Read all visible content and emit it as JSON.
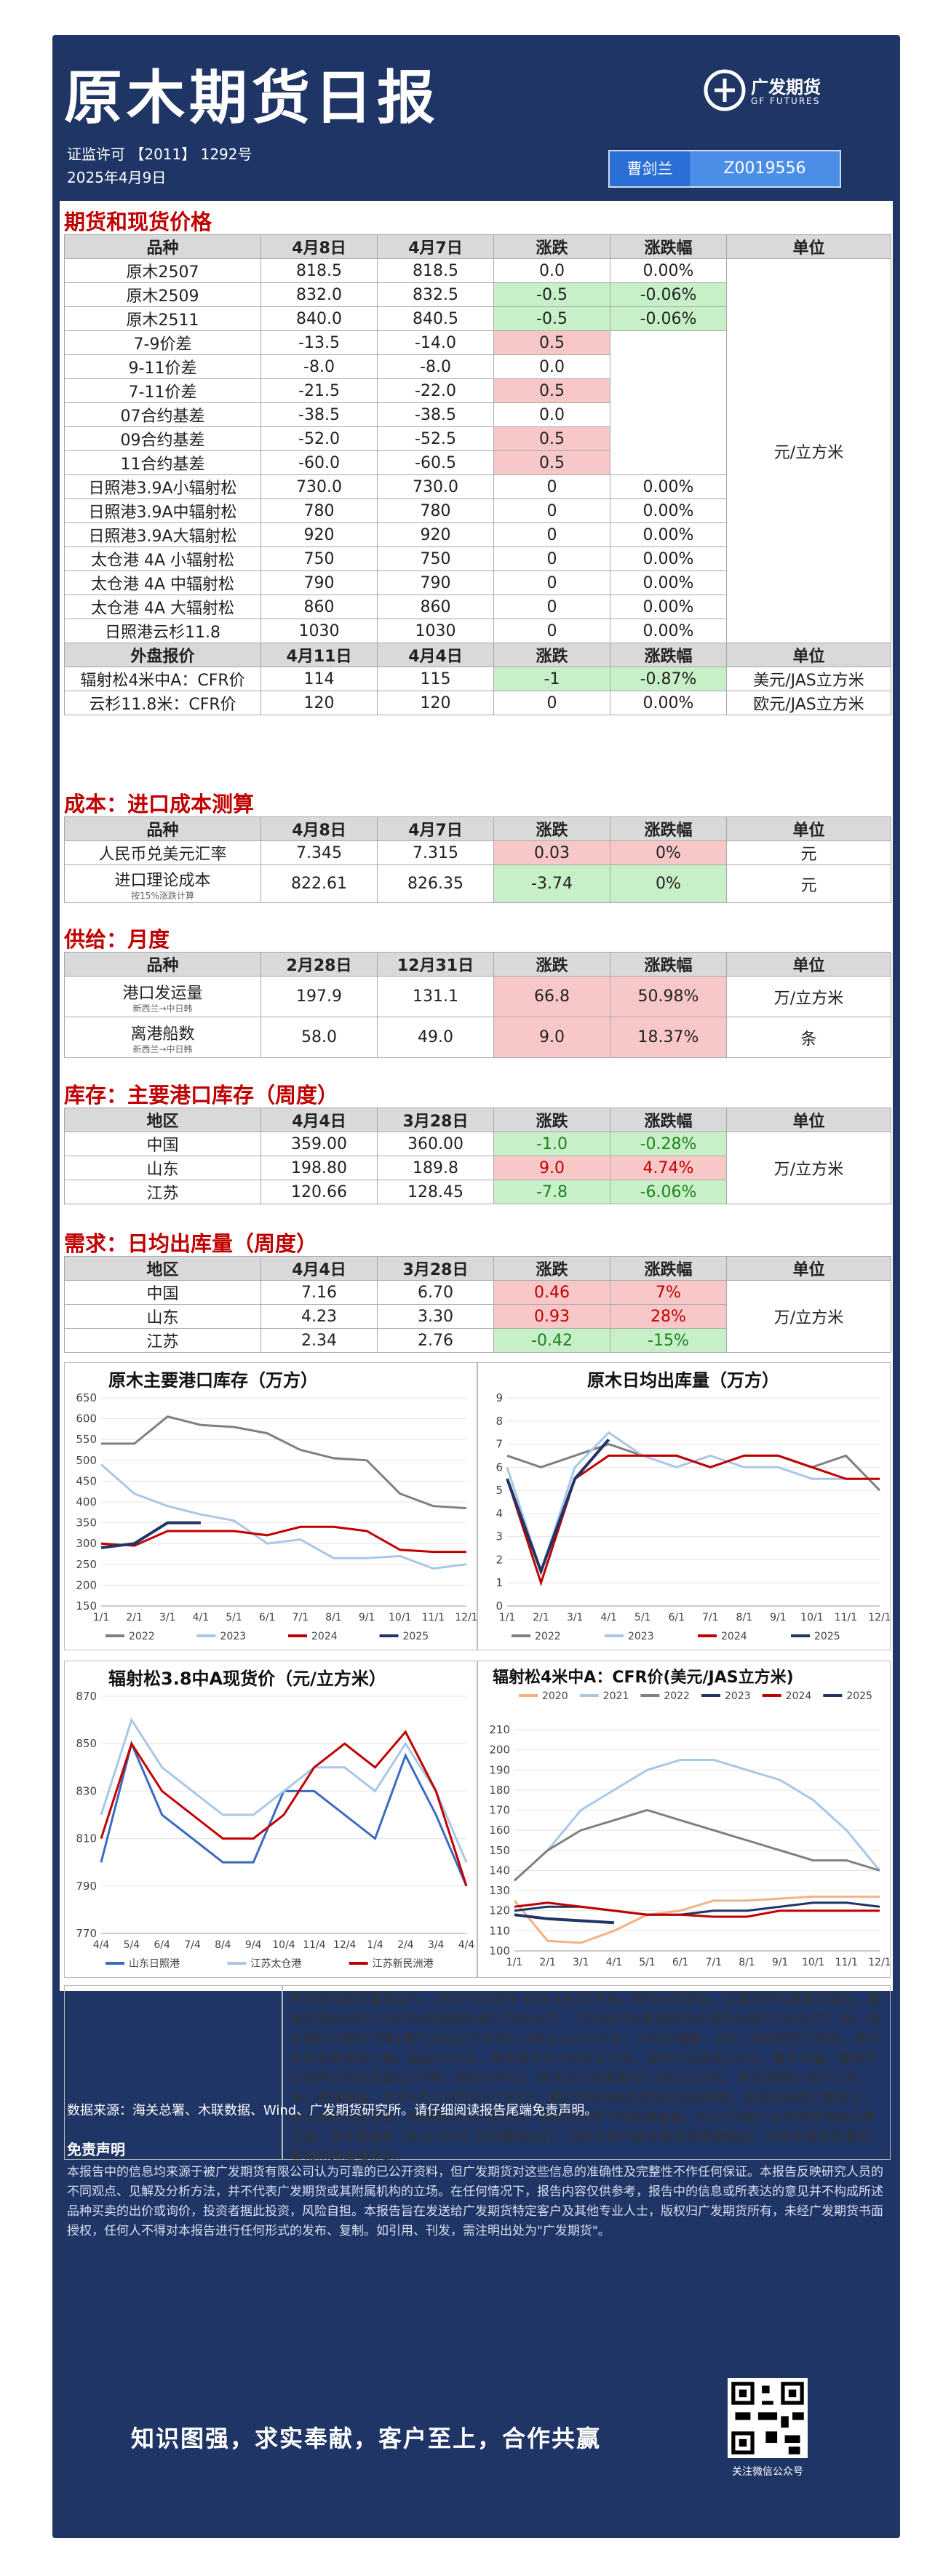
{
  "header": {
    "title": "原木期货日报",
    "license": "证监许可 【2011】 1292号",
    "date": "2025年4月9日",
    "logo_cn": "广发期货",
    "logo_en": "GF FUTURES",
    "author_name": "曹剑兰",
    "author_id": "Z0019556"
  },
  "futures": {
    "section": "期货和现货价格",
    "headers": [
      "品种",
      "4月8日",
      "4月7日",
      "涨跌",
      "涨跌幅",
      "单位"
    ],
    "unit": "元/立方米",
    "rows": [
      [
        "原木2507",
        "818.5",
        "818.5",
        "0.0",
        "0.00%"
      ],
      [
        "原木2509",
        "832.0",
        "832.5",
        "-0.5",
        "-0.06%"
      ],
      [
        "原木2511",
        "840.0",
        "840.5",
        "-0.5",
        "-0.06%"
      ],
      [
        "7-9价差",
        "-13.5",
        "-14.0",
        "0.5",
        ""
      ],
      [
        "9-11价差",
        "-8.0",
        "-8.0",
        "0.0",
        ""
      ],
      [
        "7-11价差",
        "-21.5",
        "-22.0",
        "0.5",
        ""
      ],
      [
        "07合约基差",
        "-38.5",
        "-38.5",
        "0.0",
        ""
      ],
      [
        "09合约基差",
        "-52.0",
        "-52.5",
        "0.5",
        ""
      ],
      [
        "11合约基差",
        "-60.0",
        "-60.5",
        "0.5",
        ""
      ],
      [
        "日照港3.9A小辐射松",
        "730.0",
        "730.0",
        "0",
        "0.00%"
      ],
      [
        "日照港3.9A中辐射松",
        "780",
        "780",
        "0",
        "0.00%"
      ],
      [
        "日照港3.9A大辐射松",
        "920",
        "920",
        "0",
        "0.00%"
      ],
      [
        "太仓港 4A 小辐射松",
        "750",
        "750",
        "0",
        "0.00%"
      ],
      [
        "太仓港 4A 中辐射松",
        "790",
        "790",
        "0",
        "0.00%"
      ],
      [
        "太仓港 4A 大辐射松",
        "860",
        "860",
        "0",
        "0.00%"
      ],
      [
        "日照港云杉11.8",
        "1030",
        "1030",
        "0",
        "0.00%"
      ]
    ],
    "ext_headers": [
      "外盘报价",
      "4月11日",
      "4月4日",
      "涨跌",
      "涨跌幅",
      "单位"
    ],
    "ext_rows": [
      [
        "辐射松4米中A：CFR价",
        "114",
        "115",
        "-1",
        "-0.87%",
        "美元/JAS立方米"
      ],
      [
        "云杉11.8米：CFR价",
        "120",
        "120",
        "0",
        "0.00%",
        "欧元/JAS立方米"
      ]
    ]
  },
  "cost": {
    "section": "成本：进口成本测算",
    "headers": [
      "品种",
      "4月8日",
      "4月7日",
      "涨跌",
      "涨跌幅",
      "单位"
    ],
    "rows": [
      [
        "人民币兑美元汇率",
        "7.345",
        "7.315",
        "0.03",
        "0%",
        "元"
      ],
      [
        "进口理论成本",
        "822.61",
        "826.35",
        "-3.74",
        "0%",
        "元"
      ]
    ],
    "cost_note": "按15%涨跌计算"
  },
  "supply": {
    "section": "供给：月度",
    "headers": [
      "品种",
      "2月28日",
      "12月31日",
      "涨跌",
      "涨跌幅",
      "单位"
    ],
    "rows": [
      [
        "港口发运量",
        "197.9",
        "131.1",
        "66.8",
        "50.98%",
        "万/立方米"
      ],
      [
        "离港船数",
        "58.0",
        "49.0",
        "9.0",
        "18.37%",
        "条"
      ]
    ],
    "note": "新西兰→中日韩"
  },
  "inventory": {
    "section": "库存：主要港口库存（周度）",
    "headers": [
      "地区",
      "4月4日",
      "3月28日",
      "涨跌",
      "涨跌幅",
      "单位"
    ],
    "unit": "万/立方米",
    "rows": [
      [
        "中国",
        "359.00",
        "360.00",
        "-1.0",
        "-0.28%"
      ],
      [
        "山东",
        "198.80",
        "189.8",
        "9.0",
        "4.74%"
      ],
      [
        "江苏",
        "120.66",
        "128.45",
        "-7.8",
        "-6.06%"
      ]
    ]
  },
  "demand": {
    "section": "需求：日均出库量（周度）",
    "headers": [
      "地区",
      "4月4日",
      "3月28日",
      "涨跌",
      "涨跌幅",
      "单位"
    ],
    "unit": "万/立方米",
    "rows": [
      [
        "中国",
        "7.16",
        "6.70",
        "0.46",
        "7%"
      ],
      [
        "山东",
        "4.23",
        "3.30",
        "0.93",
        "28%"
      ],
      [
        "江苏",
        "2.34",
        "2.76",
        "-0.42",
        "-15%"
      ]
    ]
  },
  "chart_data": [
    {
      "type": "line",
      "title": "原木主要港口库存（万方）",
      "x": [
        "1/1",
        "2/1",
        "3/1",
        "4/1",
        "5/1",
        "6/1",
        "7/1",
        "8/1",
        "9/1",
        "10/1",
        "11/1",
        "12/1"
      ],
      "xlabels": [
        "1/1",
        "2/1",
        "3/1",
        "4/1",
        "5/1",
        "6/1",
        "7/1",
        "8/1",
        "9/1",
        "10/1",
        "11/1",
        "12/1"
      ],
      "yticks": [
        150,
        200,
        250,
        300,
        350,
        400,
        450,
        500,
        550,
        600,
        650
      ],
      "ylim": [
        150,
        650
      ],
      "legend": "bottom",
      "series": [
        {
          "name": "2022",
          "color": "#808080",
          "values": [
            540,
            540,
            605,
            585,
            580,
            565,
            525,
            505,
            500,
            420,
            390,
            385
          ]
        },
        {
          "name": "2023",
          "color": "#a9c7e6",
          "values": [
            490,
            420,
            390,
            370,
            355,
            300,
            310,
            265,
            265,
            270,
            240,
            250
          ]
        },
        {
          "name": "2024",
          "color": "#c00000",
          "values": [
            300,
            295,
            330,
            330,
            330,
            320,
            340,
            340,
            330,
            285,
            280,
            280
          ]
        },
        {
          "name": "2025",
          "color": "#1f3565",
          "values": [
            290,
            300,
            350,
            350,
            null,
            null,
            null,
            null,
            null,
            null,
            null,
            null
          ]
        }
      ]
    },
    {
      "type": "line",
      "title": "原木日均出库量（万方）",
      "x": [
        "1/1",
        "2/1",
        "3/1",
        "4/1",
        "5/1",
        "6/1",
        "7/1",
        "8/1",
        "9/1",
        "10/1",
        "11/1",
        "12/1"
      ],
      "xlabels": [
        "1/1",
        "2/1",
        "3/1",
        "4/1",
        "5/1",
        "6/1",
        "7/1",
        "8/1",
        "9/1",
        "10/1",
        "11/1",
        "12/1"
      ],
      "yticks": [
        0,
        1,
        2,
        3,
        4,
        5,
        6,
        7,
        8,
        9
      ],
      "ylim": [
        0,
        9
      ],
      "legend": "bottom",
      "series": [
        {
          "name": "2022",
          "color": "#808080",
          "values": [
            6.5,
            6.0,
            6.5,
            7.0,
            6.5,
            6.5,
            6.0,
            6.5,
            6.5,
            6.0,
            6.5,
            5.0
          ]
        },
        {
          "name": "2023",
          "color": "#a9c7e6",
          "values": [
            6.0,
            1.5,
            6.0,
            7.5,
            6.5,
            6.0,
            6.5,
            6.0,
            6.0,
            5.5,
            5.5,
            5.5
          ]
        },
        {
          "name": "2024",
          "color": "#c00000",
          "values": [
            5.5,
            1.0,
            5.5,
            6.5,
            6.5,
            6.5,
            6.0,
            6.5,
            6.5,
            6.0,
            5.5,
            5.5
          ]
        },
        {
          "name": "2025",
          "color": "#1f3565",
          "values": [
            5.5,
            1.5,
            5.5,
            7.2,
            null,
            null,
            null,
            null,
            null,
            null,
            null,
            null
          ]
        }
      ]
    },
    {
      "type": "line",
      "title": "辐射松3.8中A现货价（元/立方米）",
      "x": [
        "4/4",
        "5/4",
        "6/4",
        "7/4",
        "8/4",
        "9/4",
        "10/4",
        "11/4",
        "12/4",
        "1/4",
        "2/4",
        "3/4",
        "4/4"
      ],
      "xlabels": [
        "4/4",
        "5/4",
        "6/4",
        "7/4",
        "8/4",
        "9/4",
        "10/4",
        "11/4",
        "12/4",
        "1/4",
        "2/4",
        "3/4",
        "4/4"
      ],
      "yticks": [
        770,
        790,
        810,
        830,
        850,
        870
      ],
      "ylim": [
        770,
        870
      ],
      "legend": "bottom",
      "series": [
        {
          "name": "山东日照港",
          "color": "#3a6bbf",
          "values": [
            800,
            850,
            820,
            810,
            800,
            800,
            830,
            830,
            820,
            810,
            845,
            820,
            790
          ]
        },
        {
          "name": "江苏太仓港",
          "color": "#a9c7e6",
          "values": [
            820,
            860,
            840,
            830,
            820,
            820,
            830,
            840,
            840,
            830,
            850,
            830,
            800
          ]
        },
        {
          "name": "江苏新民洲港",
          "color": "#c00000",
          "values": [
            810,
            850,
            830,
            820,
            810,
            810,
            820,
            840,
            850,
            840,
            855,
            830,
            790
          ]
        }
      ]
    },
    {
      "type": "line",
      "title": "辐射松4米中A：CFR价(美元/JAS立方米)",
      "x": [
        "1/1",
        "2/1",
        "3/1",
        "4/1",
        "5/1",
        "6/1",
        "7/1",
        "8/1",
        "9/1",
        "10/1",
        "11/1",
        "12/1"
      ],
      "xlabels": [
        "1/1",
        "2/1",
        "3/1",
        "4/1",
        "5/1",
        "6/1",
        "7/1",
        "8/1",
        "9/1",
        "10/1",
        "11/1",
        "12/1"
      ],
      "yticks": [
        100,
        110,
        120,
        130,
        140,
        150,
        160,
        170,
        180,
        190,
        200,
        210
      ],
      "ylim": [
        100,
        210
      ],
      "legend": "top",
      "series": [
        {
          "name": "2020",
          "color": "#f4b183",
          "values": [
            125,
            105,
            104,
            110,
            118,
            120,
            125,
            125,
            126,
            127,
            127,
            127
          ]
        },
        {
          "name": "2021",
          "color": "#a9c7e6",
          "values": [
            135,
            150,
            170,
            180,
            190,
            195,
            195,
            190,
            185,
            175,
            160,
            140
          ]
        },
        {
          "name": "2022",
          "color": "#808080",
          "values": [
            135,
            150,
            160,
            165,
            170,
            165,
            160,
            155,
            150,
            145,
            145,
            140
          ]
        },
        {
          "name": "2023",
          "color": "#1f3565",
          "values": [
            120,
            122,
            122,
            120,
            118,
            118,
            120,
            120,
            122,
            124,
            124,
            122
          ]
        },
        {
          "name": "2024",
          "color": "#c00000",
          "values": [
            122,
            124,
            122,
            120,
            118,
            118,
            117,
            117,
            120,
            120,
            120,
            120
          ]
        },
        {
          "name": "2025",
          "color": "#1f3565",
          "values": [
            118,
            116,
            115,
            114,
            null,
            null,
            null,
            null,
            null,
            null,
            null,
            null
          ]
        }
      ]
    }
  ],
  "charts": {
    "inv_title": "原木主要港口库存（万方）",
    "out_title": "原木日均出库量（万方）",
    "spot_title": "辐射松3.8中A现货价（元/立方米）",
    "cfr_title": "辐射松4米中A：CFR价(美元/JAS立方米)"
  },
  "view": {
    "label": "原木观点",
    "text": "昨日原木期货震荡运行，2507合约收于 818.5元/立方米，较昨日无变化。主要现货价格暂无变化，基准交割品山东3.9米中A辐射松价格为780元/方，江苏4米中A辐射松原木现货价格为790元/方。新一轮外盘CFR报价下降1美元/JAS立方米为114美元/JAS立方米。从供应端看，4月上旬供应压力仍在，港口库存去库情况一般。截止4月4日，原木库存为359万立方米，库存环比去库1万方。需求方面，需求环比回升日均出货超过7万吨，截止4月4日，原木日均出库量为7.16万立方米，环比增加0.46万立方米。整体来看，原木4月上旬供应压力仍存，预计中旬开始到港会有边际好转，若后续去库力度加大，加上当前位置较低，短期或存在反弹空间。但当前现货下跌结果盘面，加上5月进入出货淡季压制反弹力度。预计盘面在【810-850】区间震荡运行。同时关税升级导致宏观情绪偏弱，市场不确定性增加，警惕市场情绪扰动。"
  },
  "footer": {
    "source": "数据来源：海关总署、木联数据、Wind、广发期货研究所。请仔细阅读报告尾端免责声明。",
    "disclaimer_title": "免责声明",
    "disclaimer": "本报告中的信息均来源于被广发期货有限公司认为可靠的已公开资料，但广发期货对这些信息的准确性及完整性不作任何保证。本报告反映研究人员的不同观点、见解及分析方法，并不代表广发期货或其附属机构的立场。在任何情况下，报告内容仅供参考，报告中的信息或所表达的意见并不构成所述品种买卖的出价或询价，投资者据此投资，风险自担。本报告旨在发送给广发期货特定客户及其他专业人士，版权归广发期货所有，未经广发期货书面授权，任何人不得对本报告进行任何形式的发布、复制。如引用、刊发，需注明出处为\"广发期货\"。",
    "slogan": "知识图强，求实奉献，客户至上，合作共赢",
    "qr_caption": "关注微信公众号"
  }
}
